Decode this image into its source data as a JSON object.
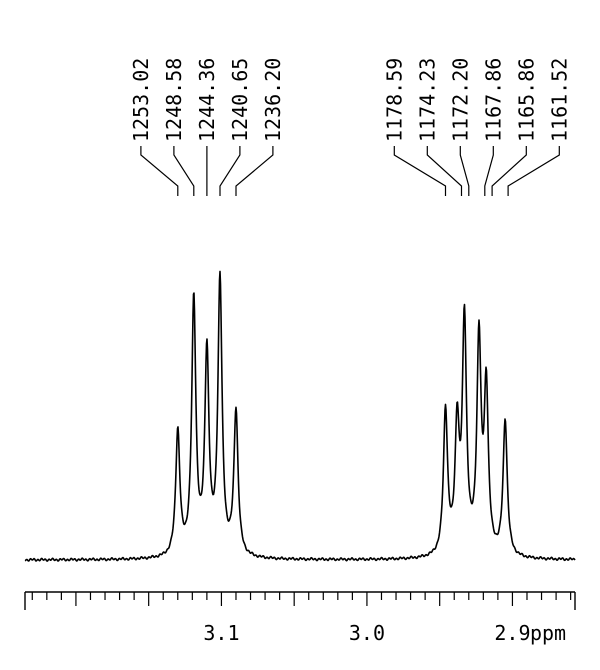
{
  "chart_data": {
    "type": "line",
    "title": "",
    "xlabel": "ppm",
    "ylabel": "",
    "xlim": [
      3.235,
      2.857
    ],
    "axis_direction": "reversed (ppm decreasing to the right)",
    "grid": false,
    "legend": "none",
    "x_ticks": [
      {
        "value": 3.1,
        "label": "3.1"
      },
      {
        "value": 3.0,
        "label": "3.0"
      },
      {
        "value": 2.9,
        "label": "2.9"
      }
    ],
    "peak_groups": [
      {
        "labels": [
          "1253.02",
          "1248.58",
          "1244.36",
          "1240.65",
          "1236.20"
        ],
        "peak_ppm": [
          3.13,
          3.119,
          3.11,
          3.101,
          3.09
        ]
      },
      {
        "labels": [
          "1178.59",
          "1174.23",
          "1172.20",
          "1167.86",
          "1165.86",
          "1161.52"
        ],
        "peak_ppm": [
          2.946,
          2.935,
          2.93,
          2.919,
          2.914,
          2.903
        ]
      }
    ],
    "peaks": [
      {
        "ppm": 3.13,
        "height": 0.44
      },
      {
        "ppm": 3.119,
        "height": 0.9
      },
      {
        "ppm": 3.11,
        "height": 0.71
      },
      {
        "ppm": 3.101,
        "height": 0.97
      },
      {
        "ppm": 3.09,
        "height": 0.51
      },
      {
        "ppm": 2.946,
        "height": 0.51
      },
      {
        "ppm": 2.938,
        "height": 0.44
      },
      {
        "ppm": 2.933,
        "height": 0.82
      },
      {
        "ppm": 2.923,
        "height": 0.75
      },
      {
        "ppm": 2.918,
        "height": 0.58
      },
      {
        "ppm": 2.905,
        "height": 0.48
      }
    ],
    "ylim": [
      0,
      1
    ]
  }
}
